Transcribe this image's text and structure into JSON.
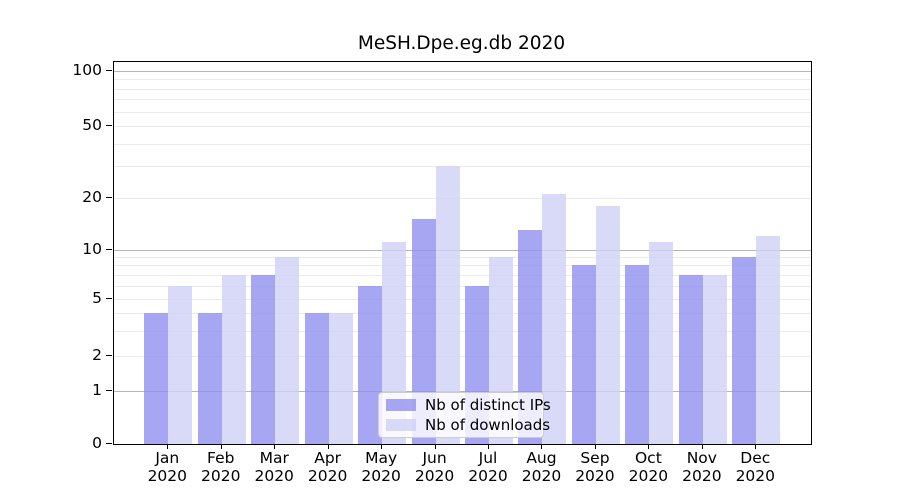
{
  "title": "MeSH.Dpe.eg.db 2020",
  "colors": {
    "distinct_ips_fill": "rgba(144,144,239,0.8)",
    "downloads_fill": "rgba(208,208,246,0.8)",
    "grid_major": "#b6b6b6",
    "grid_minor": "#ebebeb",
    "axis": "#000000",
    "legend_border": "#cccccc"
  },
  "legend": {
    "items": [
      {
        "label": "Nb of distinct IPs",
        "color": "rgba(144,144,239,0.8)"
      },
      {
        "label": "Nb of downloads",
        "color": "rgba(208,208,246,0.8)"
      }
    ]
  },
  "chart_data": {
    "type": "bar",
    "title": "MeSH.Dpe.eg.db 2020",
    "categories": [
      "Jan 2020",
      "Feb 2020",
      "Mar 2020",
      "Apr 2020",
      "May 2020",
      "Jun 2020",
      "Jul 2020",
      "Aug 2020",
      "Sep 2020",
      "Oct 2020",
      "Nov 2020",
      "Dec 2020"
    ],
    "series": [
      {
        "name": "Nb of distinct IPs",
        "values": [
          4,
          4,
          7,
          4,
          6,
          15,
          6,
          13,
          8,
          8,
          7,
          9
        ]
      },
      {
        "name": "Nb of downloads",
        "values": [
          6,
          7,
          9,
          4,
          11,
          30,
          9,
          21,
          18,
          11,
          7,
          12
        ]
      }
    ],
    "xlabel": "",
    "ylabel": "",
    "yscale": "symlog",
    "ylim": [
      0,
      112
    ],
    "y_ticks": [
      0,
      1,
      2,
      5,
      10,
      20,
      50,
      100
    ],
    "y_major_gridlines": [
      1,
      10,
      100
    ],
    "y_minor_gridlines": [
      2,
      3,
      4,
      5,
      6,
      7,
      8,
      9,
      20,
      30,
      40,
      50,
      60,
      70,
      80,
      90
    ],
    "grid": true,
    "legend_position": "lower center"
  }
}
